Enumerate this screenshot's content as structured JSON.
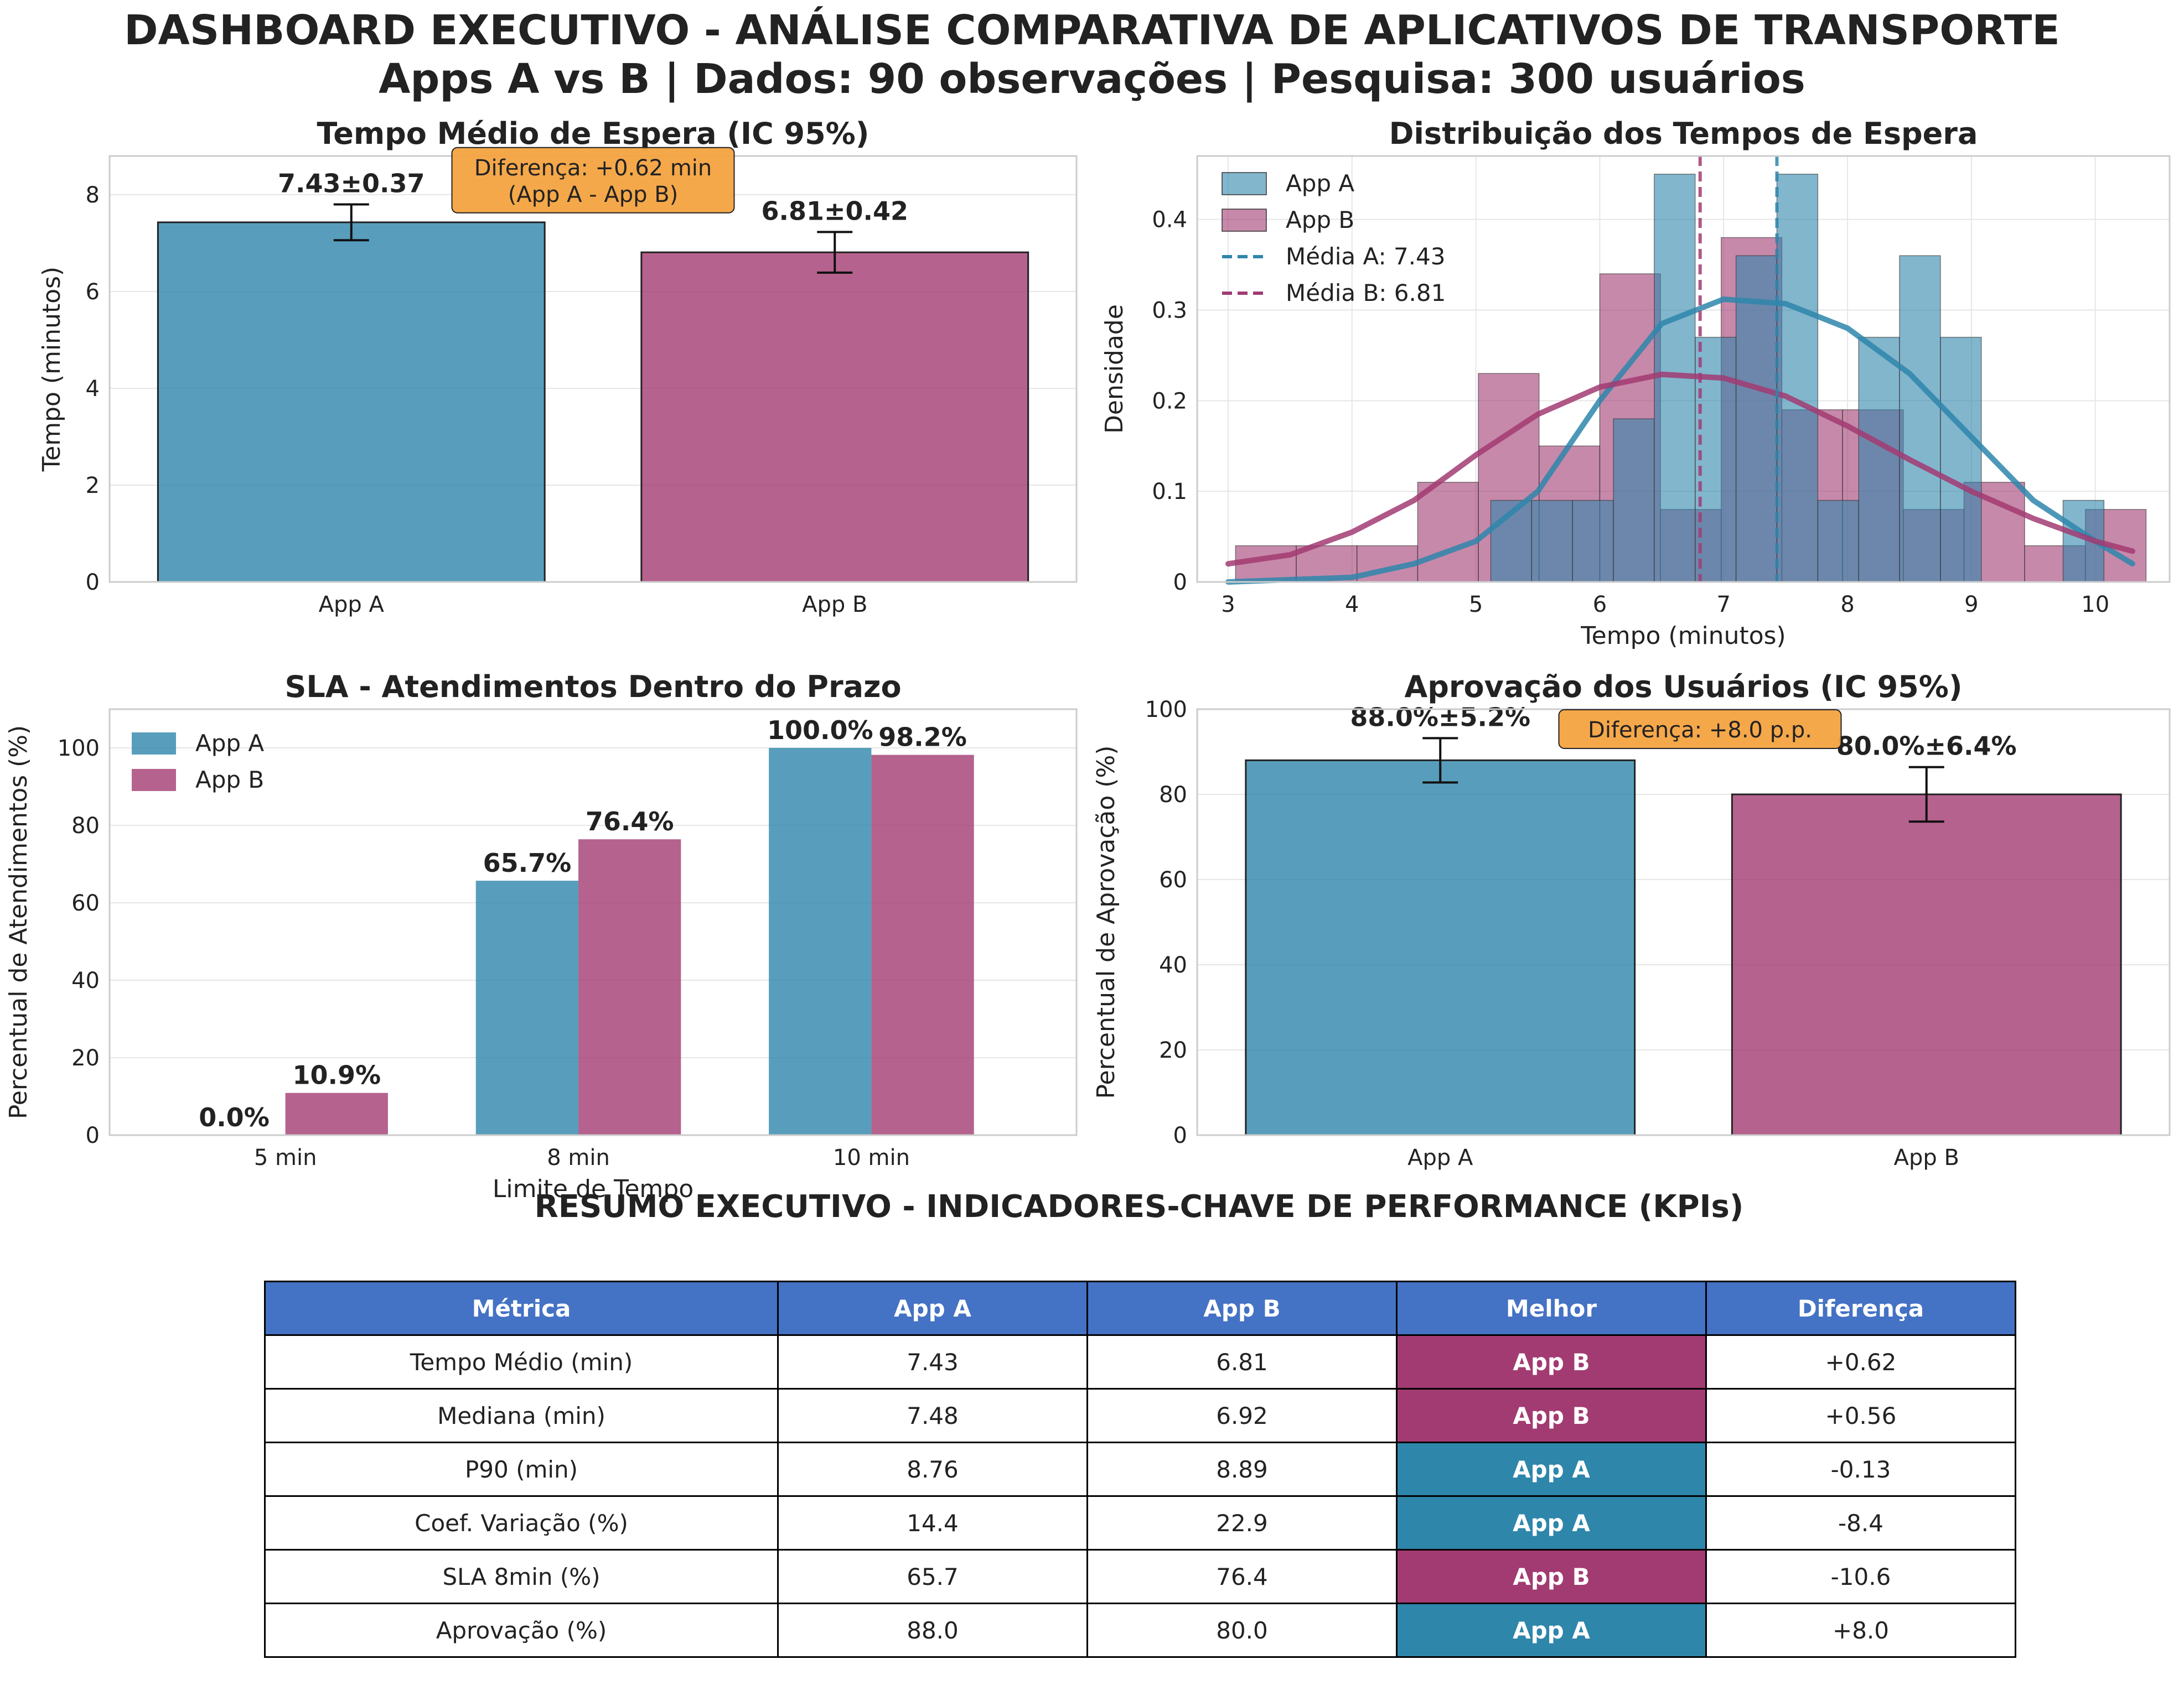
{
  "title": "DASHBOARD EXECUTIVO - ANÁLISE COMPARATIVA DE APLICATIVOS DE TRANSPORTE",
  "subtitle": "Apps A vs B | Dados: 90 observações | Pesquisa: 300 usuários",
  "colors": {
    "app_a": "#2e86ab",
    "app_b": "#a23b72",
    "annotation": "#f4a340",
    "table_header": "#4472c4"
  },
  "chart_data": [
    {
      "id": "wait",
      "type": "bar",
      "title": "Tempo Médio de Espera (IC 95%)",
      "ylabel": "Tempo (minutos)",
      "ylim": [
        0,
        8.8
      ],
      "yticks": [
        0,
        2,
        4,
        6,
        8
      ],
      "categories": [
        "App A",
        "App B"
      ],
      "values": [
        7.43,
        6.81
      ],
      "errors": [
        0.37,
        0.42
      ],
      "value_labels": [
        "7.43±0.37",
        "6.81±0.42"
      ],
      "annotation": "Diferença: +0.62 min\n(App A - App B)",
      "grid": true
    },
    {
      "id": "dist",
      "type": "histogram",
      "title": "Distribuição dos Tempos de Espera",
      "xlabel": "Tempo (minutos)",
      "ylabel": "Densidade",
      "xlim": [
        2.75,
        10.6
      ],
      "ylim": [
        0,
        0.47
      ],
      "xticks": [
        3,
        4,
        5,
        6,
        7,
        8,
        9,
        10
      ],
      "yticks": [
        0.0,
        0.1,
        0.2,
        0.3,
        0.4
      ],
      "legend_position": "top-left",
      "series": [
        {
          "name": "App A",
          "bin_start": 5.12,
          "bin_width": 0.33,
          "densities": [
            0.09,
            0.09,
            0.09,
            0.18,
            0.45,
            0.27,
            0.36,
            0.45,
            0.09,
            0.27,
            0.36,
            0.27,
            0.0,
            0.0,
            0.09
          ],
          "mean": 7.43,
          "mean_label": "Média A: 7.43",
          "kde": [
            [
              3.0,
              0.0
            ],
            [
              4.0,
              0.005
            ],
            [
              4.5,
              0.02
            ],
            [
              5.0,
              0.045
            ],
            [
              5.5,
              0.1
            ],
            [
              6.0,
              0.2
            ],
            [
              6.5,
              0.285
            ],
            [
              7.0,
              0.312
            ],
            [
              7.5,
              0.307
            ],
            [
              8.0,
              0.28
            ],
            [
              8.5,
              0.23
            ],
            [
              9.0,
              0.16
            ],
            [
              9.5,
              0.09
            ],
            [
              10.0,
              0.045
            ],
            [
              10.3,
              0.02
            ]
          ]
        },
        {
          "name": "App B",
          "bin_start": 3.06,
          "bin_width": 0.49,
          "densities": [
            0.04,
            0.04,
            0.04,
            0.11,
            0.23,
            0.15,
            0.34,
            0.08,
            0.38,
            0.19,
            0.19,
            0.08,
            0.11,
            0.04,
            0.08
          ],
          "mean": 6.81,
          "mean_label": "Média B: 6.81",
          "kde": [
            [
              3.0,
              0.02
            ],
            [
              3.5,
              0.03
            ],
            [
              4.0,
              0.055
            ],
            [
              4.5,
              0.09
            ],
            [
              5.0,
              0.14
            ],
            [
              5.5,
              0.185
            ],
            [
              6.0,
              0.215
            ],
            [
              6.5,
              0.229
            ],
            [
              7.0,
              0.225
            ],
            [
              7.5,
              0.205
            ],
            [
              8.0,
              0.172
            ],
            [
              8.5,
              0.135
            ],
            [
              9.0,
              0.1
            ],
            [
              9.5,
              0.07
            ],
            [
              10.0,
              0.045
            ],
            [
              10.3,
              0.034
            ]
          ]
        }
      ],
      "grid": true
    },
    {
      "id": "sla",
      "type": "bar",
      "title": "SLA - Atendimentos Dentro do Prazo",
      "xlabel": "Limite de Tempo",
      "ylabel": "Percentual de Atendimentos (%)",
      "ylim": [
        0,
        110
      ],
      "yticks": [
        0,
        20,
        40,
        60,
        80,
        100
      ],
      "categories": [
        "5 min",
        "8 min",
        "10 min"
      ],
      "legend_position": "top-left",
      "series": [
        {
          "name": "App A",
          "values": [
            0.0,
            65.7,
            100.0
          ],
          "labels": [
            "0.0%",
            "65.7%",
            "100.0%"
          ]
        },
        {
          "name": "App B",
          "values": [
            10.9,
            76.4,
            98.2
          ],
          "labels": [
            "10.9%",
            "76.4%",
            "98.2%"
          ]
        }
      ],
      "grid": true
    },
    {
      "id": "approval",
      "type": "bar",
      "title": "Aprovação dos Usuários (IC 95%)",
      "ylabel": "Percentual de Aprovação (%)",
      "ylim": [
        0,
        100
      ],
      "yticks": [
        0,
        20,
        40,
        60,
        80,
        100
      ],
      "categories": [
        "App A",
        "App B"
      ],
      "values": [
        88.0,
        80.0
      ],
      "errors": [
        5.2,
        6.4
      ],
      "value_labels": [
        "88.0%±5.2%",
        "80.0%±6.4%"
      ],
      "annotation": "Diferença: +8.0 p.p.",
      "grid": true
    }
  ],
  "kpi": {
    "title": "RESUMO EXECUTIVO - INDICADORES-CHAVE DE PERFORMANCE (KPIs)",
    "headers": [
      "Métrica",
      "App A",
      "App B",
      "Melhor",
      "Diferença"
    ],
    "rows": [
      [
        "Tempo Médio (min)",
        "7.43",
        "6.81",
        "App B",
        "+0.62"
      ],
      [
        "Mediana (min)",
        "7.48",
        "6.92",
        "App B",
        "+0.56"
      ],
      [
        "P90 (min)",
        "8.76",
        "8.89",
        "App A",
        "-0.13"
      ],
      [
        "Coef. Variação (%)",
        "14.4",
        "22.9",
        "App A",
        "-8.4"
      ],
      [
        "SLA 8min (%)",
        "65.7",
        "76.4",
        "App B",
        "-10.6"
      ],
      [
        "Aprovação (%)",
        "88.0",
        "80.0",
        "App A",
        "+8.0"
      ]
    ]
  }
}
